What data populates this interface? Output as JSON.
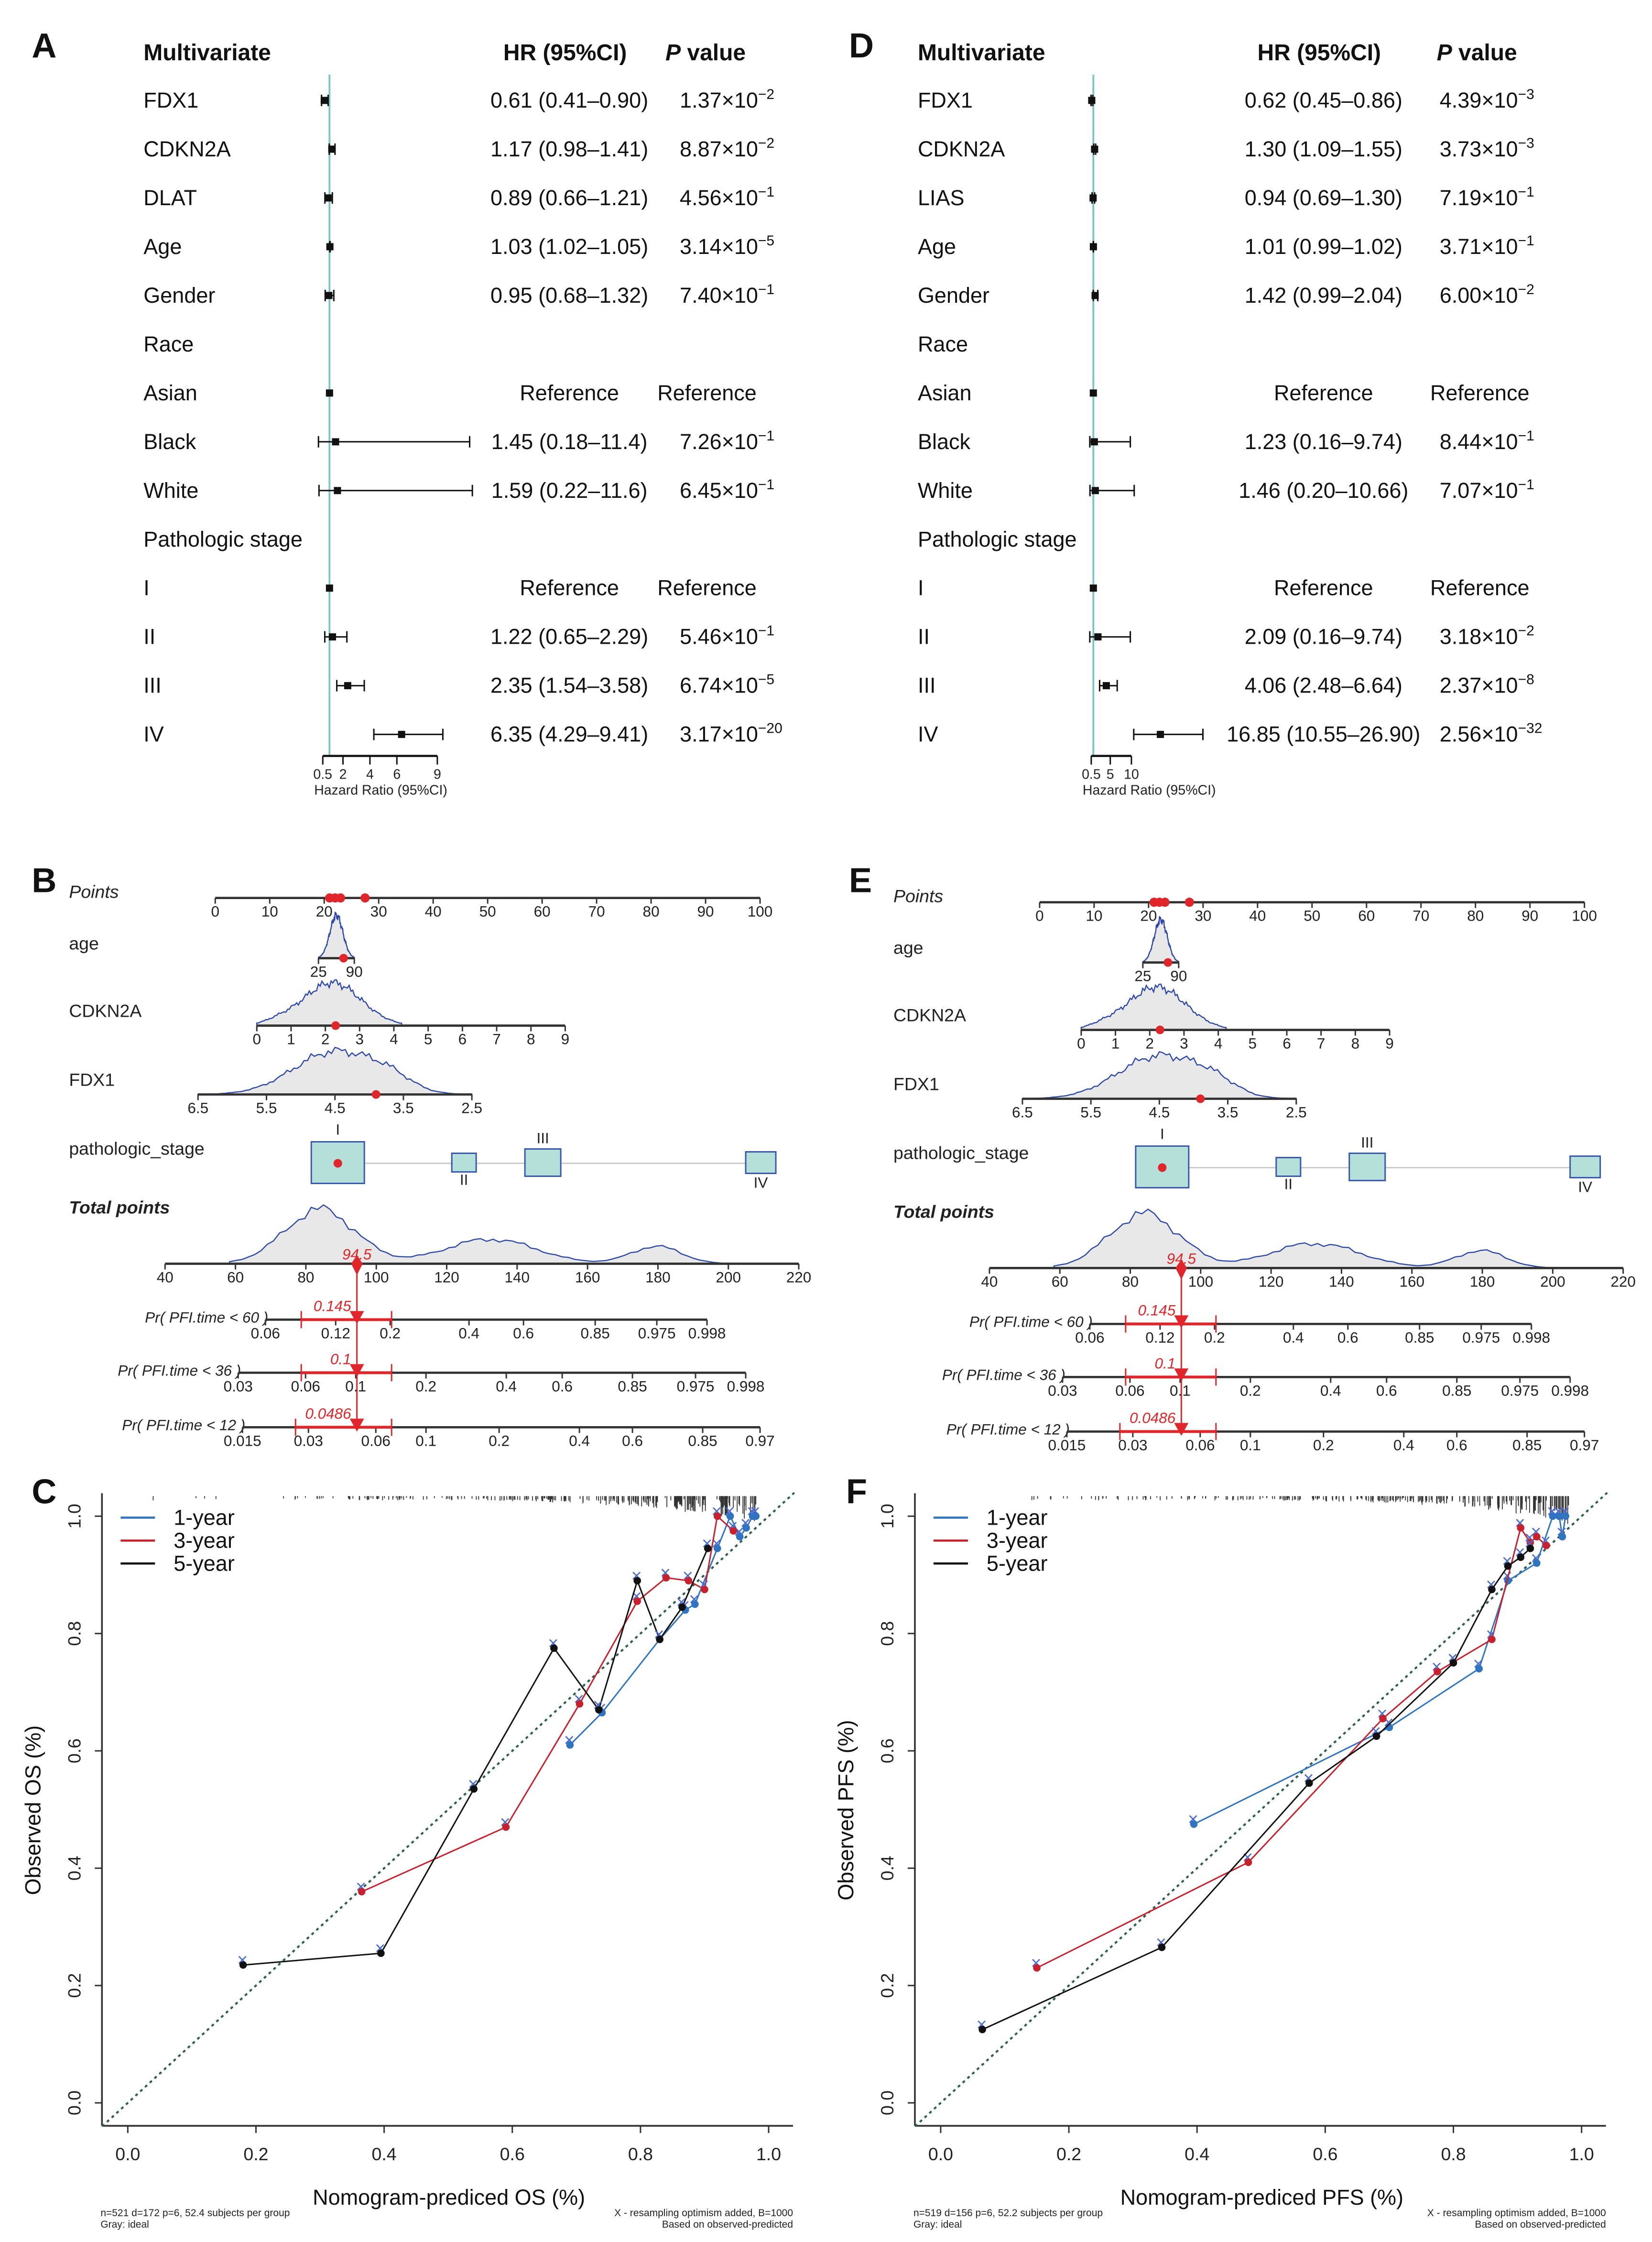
{
  "panel_labels": [
    "A",
    "B",
    "C",
    "D",
    "E",
    "F"
  ],
  "forest_plots": [
    {
      "panel": "A",
      "header": {
        "title": "Multivariate",
        "hr": "HR (95%CI)",
        "p_italic": "P",
        "p_rest": " value"
      },
      "axis": {
        "ticks": [
          "0.5",
          "2",
          "4",
          "6",
          "9"
        ],
        "tick_values": [
          0.5,
          2,
          4,
          6,
          9
        ],
        "label": "Hazard Ratio (95%CI)",
        "reference": 1
      },
      "rows": [
        {
          "name": "FDX1",
          "hr": 0.61,
          "lo": 0.41,
          "hi": 0.9,
          "hr_text": "0.61 (0.41–0.90)",
          "p": [
            "1.37×10",
            "−2"
          ]
        },
        {
          "name": "CDKN2A",
          "hr": 1.17,
          "lo": 0.98,
          "hi": 1.41,
          "hr_text": "1.17 (0.98–1.41)",
          "p": [
            "8.87×10",
            "−2"
          ]
        },
        {
          "name": "DLAT",
          "hr": 0.89,
          "lo": 0.66,
          "hi": 1.21,
          "hr_text": "0.89 (0.66–1.21)",
          "p": [
            "4.56×10",
            "−1"
          ]
        },
        {
          "name": "Age",
          "hr": 1.03,
          "lo": 1.02,
          "hi": 1.05,
          "hr_text": "1.03 (1.02–1.05)",
          "p": [
            "3.14×10",
            "−5"
          ]
        },
        {
          "name": "Gender",
          "hr": 0.95,
          "lo": 0.68,
          "hi": 1.32,
          "hr_text": "0.95 (0.68–1.32)",
          "p": [
            "7.40×10",
            "−1"
          ]
        },
        {
          "name": "Race",
          "group": true
        },
        {
          "name": "Asian",
          "hr": 1,
          "lo": 1,
          "hi": 1,
          "hr_text": "Reference",
          "p_text": "Reference"
        },
        {
          "name": "Black",
          "hr": 1.45,
          "lo": 0.18,
          "hi": 11.4,
          "hr_text": "1.45 (0.18–11.4)",
          "p": [
            "7.26×10",
            "−1"
          ]
        },
        {
          "name": "White",
          "hr": 1.59,
          "lo": 0.22,
          "hi": 11.6,
          "hr_text": "1.59 (0.22–11.6)",
          "p": [
            "6.45×10",
            "−1"
          ]
        },
        {
          "name": "Pathologic stage",
          "group": true
        },
        {
          "name": "I",
          "hr": 1,
          "lo": 1,
          "hi": 1,
          "hr_text": "Reference",
          "p_text": "Reference"
        },
        {
          "name": "II",
          "hr": 1.22,
          "lo": 0.65,
          "hi": 2.29,
          "hr_text": "1.22 (0.65–2.29)",
          "p": [
            "5.46×10",
            "−1"
          ]
        },
        {
          "name": "III",
          "hr": 2.35,
          "lo": 1.54,
          "hi": 3.58,
          "hr_text": "2.35 (1.54–3.58)",
          "p": [
            "6.74×10",
            "−5"
          ]
        },
        {
          "name": "IV",
          "hr": 6.35,
          "lo": 4.29,
          "hi": 9.41,
          "hr_text": "6.35 (4.29–9.41)",
          "p": [
            "3.17×10",
            "−20"
          ]
        }
      ]
    },
    {
      "panel": "D",
      "header": {
        "title": "Multivariate",
        "hr": "HR (95%CI)",
        "p_italic": "P",
        "p_rest": " value"
      },
      "axis": {
        "ticks": [
          "0.5",
          "5",
          "10"
        ],
        "tick_values": [
          0.5,
          5,
          10
        ],
        "label": "Hazard Ratio (95%CI)",
        "reference": 1
      },
      "rows": [
        {
          "name": "FDX1",
          "hr": 0.62,
          "lo": 0.45,
          "hi": 0.86,
          "hr_text": "0.62 (0.45–0.86)",
          "p": [
            "4.39×10",
            "−3"
          ]
        },
        {
          "name": "CDKN2A",
          "hr": 1.3,
          "lo": 1.09,
          "hi": 1.55,
          "hr_text": "1.30 (1.09–1.55)",
          "p": [
            "3.73×10",
            "−3"
          ]
        },
        {
          "name": "LIAS",
          "hr": 0.94,
          "lo": 0.69,
          "hi": 1.3,
          "hr_text": "0.94 (0.69–1.30)",
          "p": [
            "7.19×10",
            "−1"
          ]
        },
        {
          "name": "Age",
          "hr": 1.01,
          "lo": 0.99,
          "hi": 1.02,
          "hr_text": "1.01 (0.99–1.02)",
          "p": [
            "3.71×10",
            "−1"
          ]
        },
        {
          "name": "Gender",
          "hr": 1.42,
          "lo": 0.99,
          "hi": 2.04,
          "hr_text": "1.42 (0.99–2.04)",
          "p": [
            "6.00×10",
            "−2"
          ]
        },
        {
          "name": "Race",
          "group": true
        },
        {
          "name": "Asian",
          "hr": 1,
          "lo": 1,
          "hi": 1,
          "hr_text": "Reference",
          "p_text": "Reference"
        },
        {
          "name": "Black",
          "hr": 1.23,
          "lo": 0.16,
          "hi": 9.74,
          "hr_text": "1.23 (0.16–9.74)",
          "p": [
            "8.44×10",
            "−1"
          ]
        },
        {
          "name": "White",
          "hr": 1.46,
          "lo": 0.2,
          "hi": 10.66,
          "hr_text": "1.46 (0.20–10.66)",
          "p": [
            "7.07×10",
            "−1"
          ]
        },
        {
          "name": "Pathologic stage",
          "group": true
        },
        {
          "name": "I",
          "hr": 1,
          "lo": 1,
          "hi": 1,
          "hr_text": "Reference",
          "p_text": "Reference"
        },
        {
          "name": "II",
          "hr": 2.09,
          "lo": 0.16,
          "hi": 9.74,
          "hr_text": "2.09 (0.16–9.74)",
          "p": [
            "3.18×10",
            "−2"
          ]
        },
        {
          "name": "III",
          "hr": 4.06,
          "lo": 2.48,
          "hi": 6.64,
          "hr_text": "4.06 (2.48–6.64)",
          "p": [
            "2.37×10",
            "−8"
          ]
        },
        {
          "name": "IV",
          "hr": 16.85,
          "lo": 10.55,
          "hi": 26.9,
          "hr_text": "16.85 (10.55–26.90)",
          "p": [
            "2.56×10",
            "−32"
          ]
        }
      ]
    }
  ],
  "nomograms": [
    {
      "panel": "B",
      "points": {
        "label": "Points",
        "ticks": [
          "0",
          "10",
          "20",
          "30",
          "40",
          "50",
          "60",
          "70",
          "80",
          "90",
          "100"
        ],
        "selected": [
          21,
          22,
          23,
          27.5
        ]
      },
      "age": {
        "label": "age",
        "ticks": [
          "25",
          "90"
        ],
        "selected_fraction": 0.7
      },
      "cdkn2a": {
        "label": "CDKN2A",
        "ticks": [
          "0",
          "1",
          "2",
          "3",
          "4",
          "5",
          "6",
          "7",
          "8",
          "9"
        ],
        "selected": 2.3
      },
      "fdx1": {
        "label": "FDX1",
        "ticks": [
          "6.5",
          "5.5",
          "4.5",
          "3.5",
          "2.5"
        ],
        "selected": 3.9
      },
      "stage": {
        "label": "pathologic_stage",
        "levels": [
          "I",
          "II",
          "III",
          "IV"
        ],
        "selected": "I"
      },
      "total": {
        "label": "Total points",
        "ticks": [
          "40",
          "60",
          "80",
          "100",
          "120",
          "140",
          "160",
          "180",
          "200",
          "220"
        ],
        "value": 94.5,
        "value_text": "94.5"
      },
      "probabilities": [
        {
          "label": "Pr( PFI.time < 60 )",
          "ticks": [
            "0.06",
            "0.12",
            "0.2",
            "0.4",
            "0.6",
            "0.85",
            "0.975",
            "0.998"
          ],
          "value_text": "0.145"
        },
        {
          "label": "Pr( PFI.time < 36 )",
          "ticks": [
            "0.03",
            "0.06",
            "0.1",
            "0.2",
            "0.4",
            "0.6",
            "0.85",
            "0.975",
            "0.998"
          ],
          "value_text": "0.1"
        },
        {
          "label": "Pr( PFI.time < 12 )",
          "ticks": [
            "0.015",
            "0.03",
            "0.06",
            "0.1",
            "0.2",
            "0.4",
            "0.6",
            "0.85",
            "0.97"
          ],
          "value_text": "0.0486"
        }
      ]
    },
    {
      "panel": "E",
      "points": {
        "label": "Points",
        "ticks": [
          "0",
          "10",
          "20",
          "30",
          "40",
          "50",
          "60",
          "70",
          "80",
          "90",
          "100"
        ],
        "selected": [
          21,
          22,
          23,
          27.5
        ]
      },
      "age": {
        "label": "age",
        "ticks": [
          "25",
          "90"
        ],
        "selected_fraction": 0.7
      },
      "cdkn2a": {
        "label": "CDKN2A",
        "ticks": [
          "0",
          "1",
          "2",
          "3",
          "4",
          "5",
          "6",
          "7",
          "8",
          "9"
        ],
        "selected": 2.3
      },
      "fdx1": {
        "label": "FDX1",
        "ticks": [
          "6.5",
          "5.5",
          "4.5",
          "3.5",
          "2.5"
        ],
        "selected": 3.9
      },
      "stage": {
        "label": "pathologic_stage",
        "levels": [
          "I",
          "II",
          "III",
          "IV"
        ],
        "selected": "I"
      },
      "total": {
        "label": "Total points",
        "ticks": [
          "40",
          "60",
          "80",
          "100",
          "120",
          "140",
          "160",
          "180",
          "200",
          "220"
        ],
        "value": 94.5,
        "value_text": "94.5"
      },
      "probabilities": [
        {
          "label": "Pr( PFI.time < 60 )",
          "ticks": [
            "0.06",
            "0.12",
            "0.2",
            "0.4",
            "0.6",
            "0.85",
            "0.975",
            "0.998"
          ],
          "value_text": "0.145"
        },
        {
          "label": "Pr( PFI.time < 36 )",
          "ticks": [
            "0.03",
            "0.06",
            "0.1",
            "0.2",
            "0.4",
            "0.6",
            "0.85",
            "0.975",
            "0.998"
          ],
          "value_text": "0.1"
        },
        {
          "label": "Pr( PFI.time < 12 )",
          "ticks": [
            "0.015",
            "0.03",
            "0.06",
            "0.1",
            "0.2",
            "0.4",
            "0.6",
            "0.85",
            "0.97"
          ],
          "value_text": "0.0486"
        }
      ]
    }
  ],
  "chart_data": [
    {
      "panel": "C",
      "type": "line",
      "xlabel": "Nomogram-prediced OS (%)",
      "ylabel": "Observed OS (%)",
      "xlim": [
        0,
        1
      ],
      "ylim": [
        0,
        1
      ],
      "xticks": [
        "0.0",
        "0.2",
        "0.4",
        "0.6",
        "0.8",
        "1.0"
      ],
      "yticks": [
        "0.0",
        "0.2",
        "0.4",
        "0.6",
        "0.8",
        "1.0"
      ],
      "legend_position": "top-left",
      "note_left": [
        "n=521 d=172 p=6, 52.4 subjects per group",
        "Gray: ideal"
      ],
      "note_right": [
        "X - resampling optimism added, B=1000",
        "Based on observed-predicted"
      ],
      "series": [
        {
          "name": "1-year",
          "color": "#2f74c0",
          "x": [
            0.69,
            0.74,
            0.83,
            0.87,
            0.885,
            0.92,
            0.94,
            0.955,
            0.965,
            0.975,
            0.98
          ],
          "y": [
            0.61,
            0.665,
            0.79,
            0.84,
            0.85,
            0.945,
            1.0,
            0.965,
            0.98,
            1.0,
            1.0
          ]
        },
        {
          "name": "3-year",
          "color": "#c8202c",
          "x": [
            0.365,
            0.59,
            0.705,
            0.795,
            0.84,
            0.875,
            0.9,
            0.92,
            0.945
          ],
          "y": [
            0.36,
            0.47,
            0.68,
            0.855,
            0.895,
            0.89,
            0.875,
            1.0,
            0.975
          ]
        },
        {
          "name": "5-year",
          "color": "#111111",
          "x": [
            0.18,
            0.395,
            0.54,
            0.665,
            0.735,
            0.795,
            0.83,
            0.865,
            0.905
          ],
          "y": [
            0.235,
            0.255,
            0.535,
            0.775,
            0.67,
            0.89,
            0.79,
            0.845,
            0.945
          ]
        }
      ]
    },
    {
      "panel": "F",
      "type": "line",
      "xlabel": "Nomogram-prediced PFS (%)",
      "ylabel": "Observed PFS (%)",
      "xlim": [
        0,
        1
      ],
      "ylim": [
        0,
        1
      ],
      "xticks": [
        "0.0",
        "0.2",
        "0.4",
        "0.6",
        "0.8",
        "1.0"
      ],
      "yticks": [
        "0.0",
        "0.2",
        "0.4",
        "0.6",
        "0.8",
        "1.0"
      ],
      "legend_position": "top-left",
      "note_left": [
        "n=519 d=156 p=6, 52.2 subjects per group",
        "Gray: ideal"
      ],
      "note_right": [
        "X - resampling optimism added, B=1000",
        "Based on observed-predicted"
      ],
      "series": [
        {
          "name": "1-year",
          "color": "#2f74c0",
          "x": [
            0.395,
            0.7,
            0.84,
            0.885,
            0.93,
            0.955,
            0.965,
            0.97,
            0.975
          ],
          "y": [
            0.475,
            0.64,
            0.74,
            0.89,
            0.92,
            1.0,
            1.0,
            0.965,
            1.0
          ]
        },
        {
          "name": "3-year",
          "color": "#c8202c",
          "x": [
            0.15,
            0.48,
            0.69,
            0.775,
            0.86,
            0.905,
            0.92,
            0.93,
            0.945
          ],
          "y": [
            0.23,
            0.41,
            0.655,
            0.735,
            0.79,
            0.98,
            0.955,
            0.965,
            0.95
          ]
        },
        {
          "name": "5-year",
          "color": "#111111",
          "x": [
            0.065,
            0.345,
            0.575,
            0.68,
            0.8,
            0.86,
            0.885,
            0.905,
            0.92
          ],
          "y": [
            0.125,
            0.265,
            0.545,
            0.625,
            0.75,
            0.875,
            0.915,
            0.93,
            0.945
          ]
        }
      ]
    }
  ]
}
